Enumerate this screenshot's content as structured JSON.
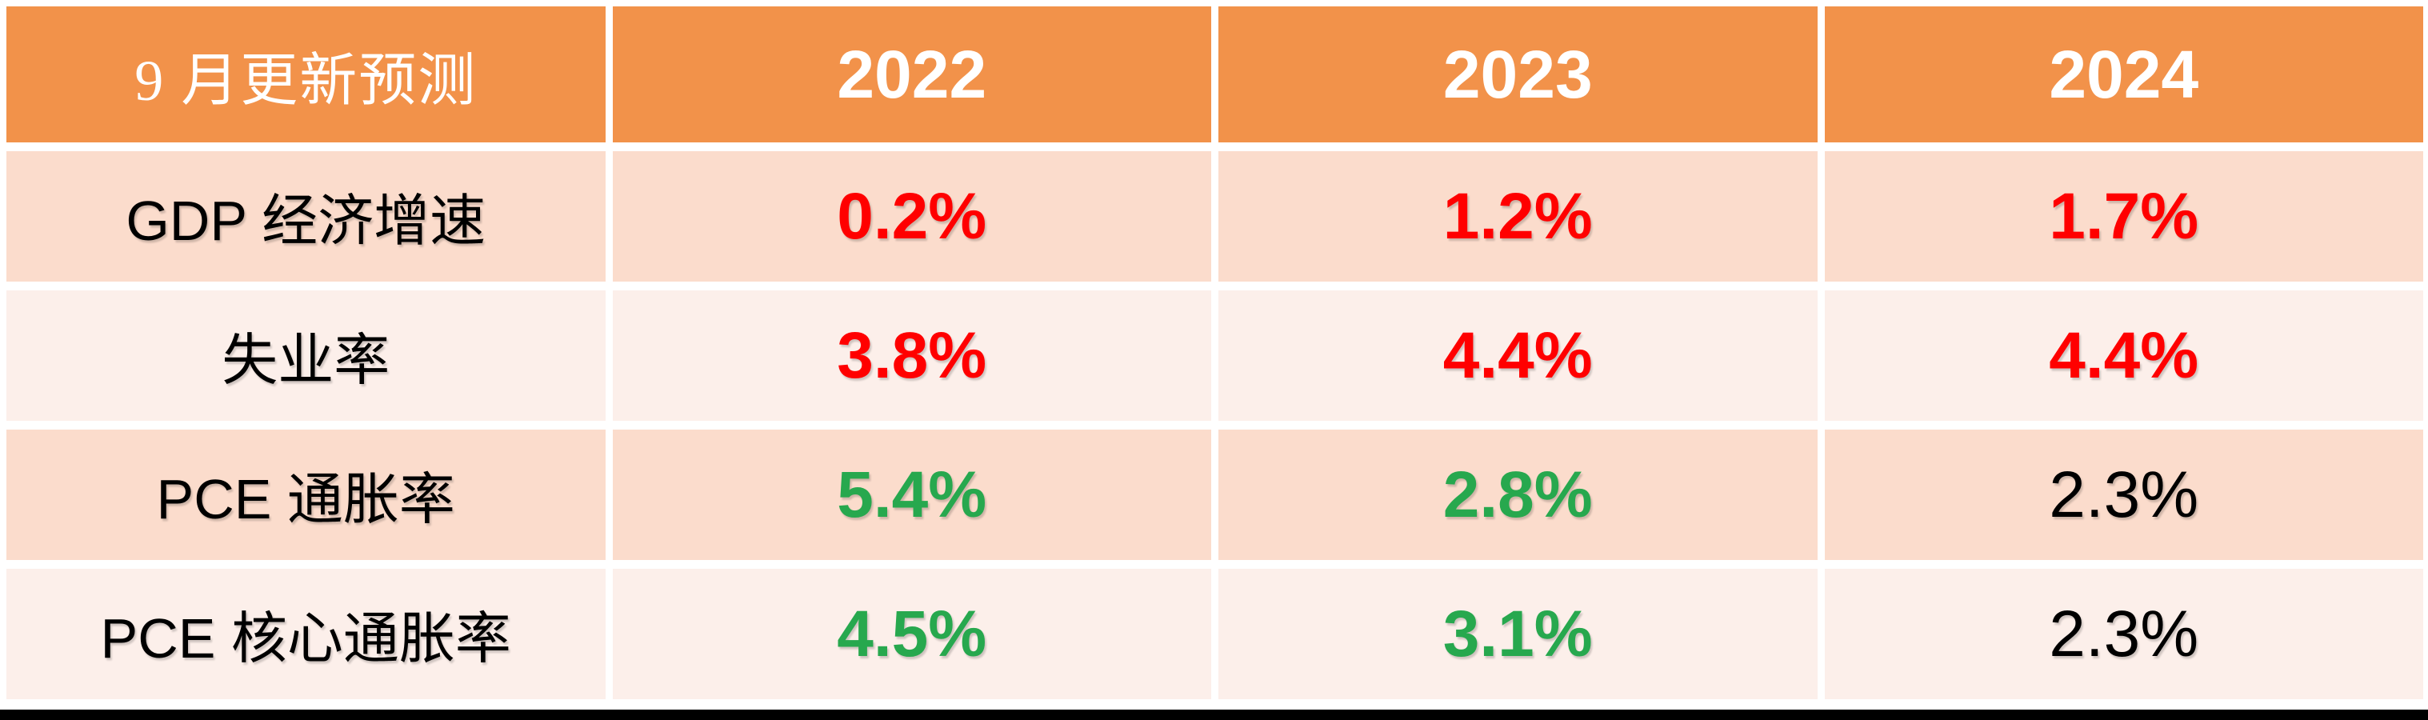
{
  "colors": {
    "header_bg": "#F2924A",
    "header_text": "#FFFFFF",
    "row_band_peach": "#FBDCCC",
    "row_band_light": "#FCEFEA",
    "value_red": "#FF0000",
    "value_green": "#27A84E",
    "value_black": "#000000",
    "bottom_bar": "#000000"
  },
  "table": {
    "header": {
      "label": "9 月更新预测",
      "years": [
        "2022",
        "2023",
        "2024"
      ]
    },
    "rows": [
      {
        "label": "GDP 经济增速",
        "values": [
          {
            "text": "0.2%",
            "color": "#FF0000",
            "fontWeight": "700"
          },
          {
            "text": "1.2%",
            "color": "#FF0000",
            "fontWeight": "700"
          },
          {
            "text": "1.7%",
            "color": "#FF0000",
            "fontWeight": "700"
          }
        ]
      },
      {
        "label": "失业率",
        "values": [
          {
            "text": "3.8%",
            "color": "#FF0000",
            "fontWeight": "700"
          },
          {
            "text": "4.4%",
            "color": "#FF0000",
            "fontWeight": "700"
          },
          {
            "text": "4.4%",
            "color": "#FF0000",
            "fontWeight": "700"
          }
        ]
      },
      {
        "label": "PCE 通胀率",
        "values": [
          {
            "text": "5.4%",
            "color": "#27A84E",
            "fontWeight": "700"
          },
          {
            "text": "2.8%",
            "color": "#27A84E",
            "fontWeight": "700"
          },
          {
            "text": "2.3%",
            "color": "#000000",
            "fontWeight": "400"
          }
        ]
      },
      {
        "label": "PCE 核心通胀率",
        "values": [
          {
            "text": "4.5%",
            "color": "#27A84E",
            "fontWeight": "700"
          },
          {
            "text": "3.1%",
            "color": "#27A84E",
            "fontWeight": "700"
          },
          {
            "text": "2.3%",
            "color": "#000000",
            "fontWeight": "400"
          }
        ]
      }
    ]
  },
  "chart_data": {
    "type": "table",
    "title": "9 月更新预测",
    "columns": [
      "9 月更新预测",
      "2022",
      "2023",
      "2024"
    ],
    "rows": [
      {
        "metric": "GDP 经济增速",
        "values": [
          "0.2%",
          "1.2%",
          "1.7%"
        ]
      },
      {
        "metric": "失业率",
        "values": [
          "3.8%",
          "4.4%",
          "4.4%"
        ]
      },
      {
        "metric": "PCE 通胀率",
        "values": [
          "5.4%",
          "2.8%",
          "2.3%"
        ]
      },
      {
        "metric": "PCE 核心通胀率",
        "values": [
          "4.5%",
          "3.1%",
          "2.3%"
        ]
      }
    ],
    "notes": {
      "red_values_meaning_color": "#FF0000",
      "green_values_meaning_color": "#27A84E",
      "plain_values_color": "#000000"
    }
  }
}
